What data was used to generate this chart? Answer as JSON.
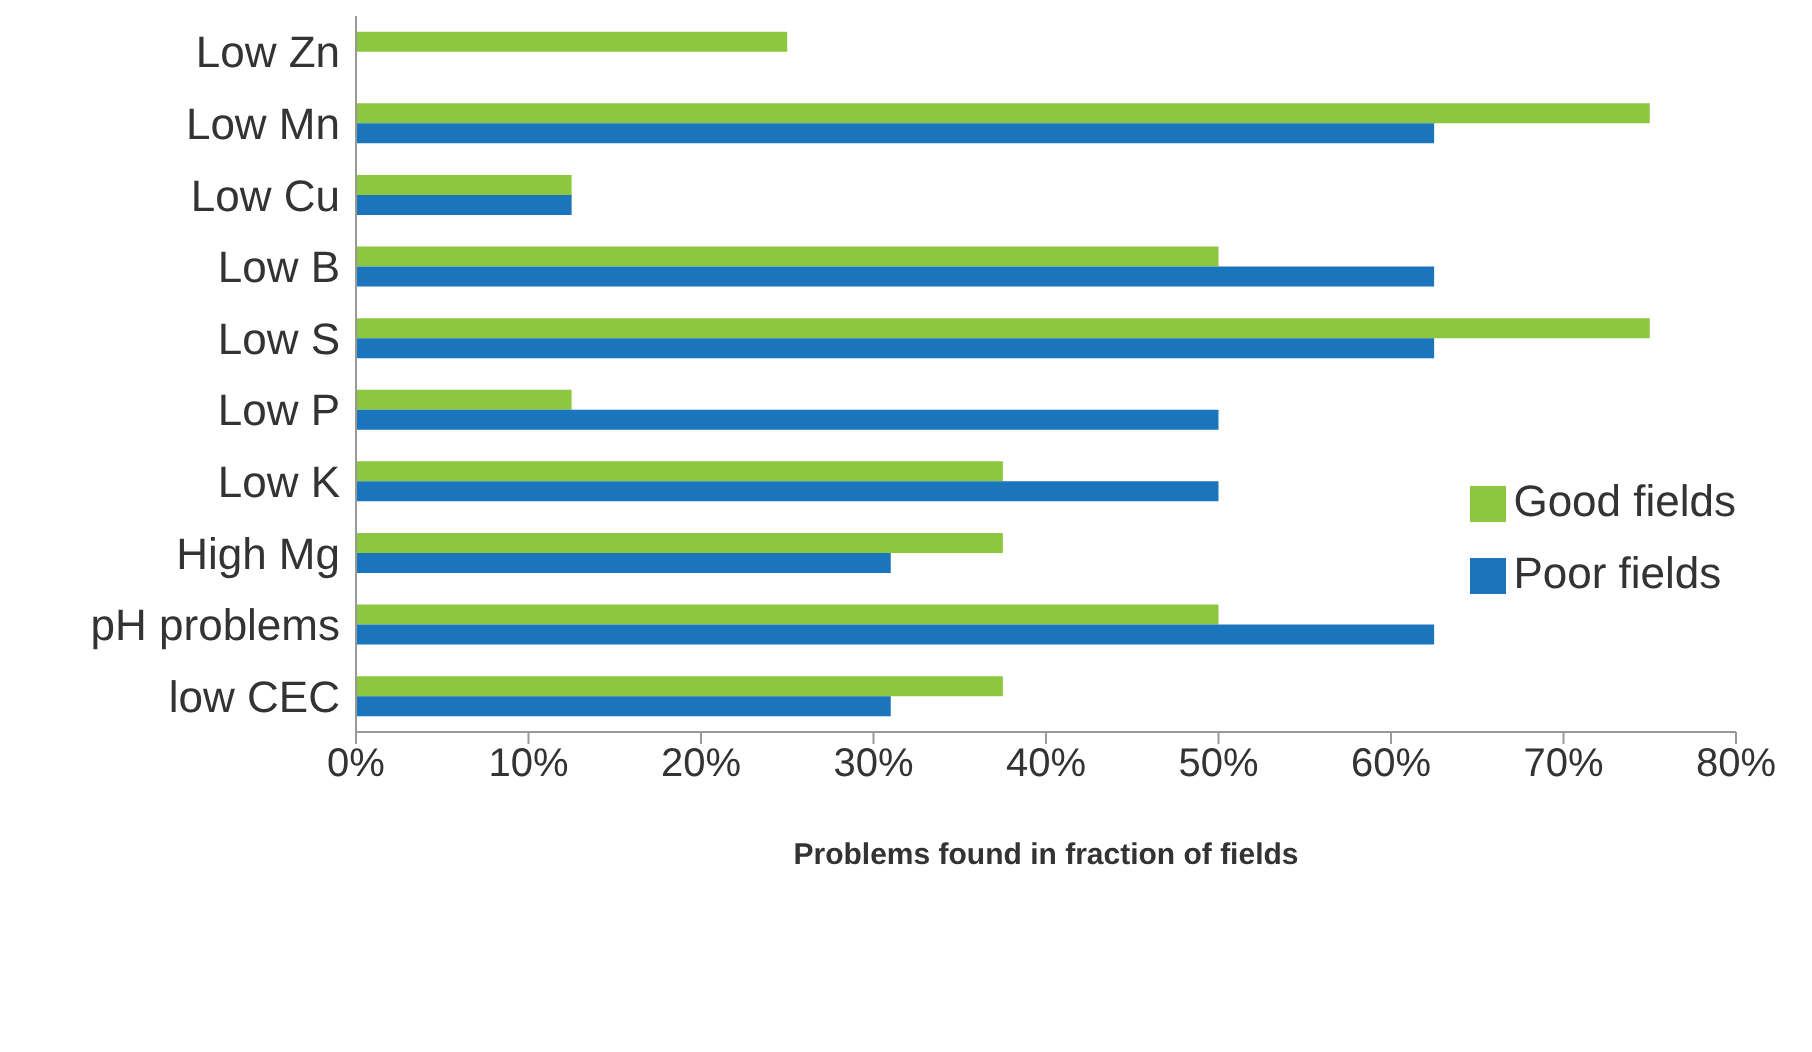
{
  "chart_data": {
    "type": "bar",
    "orientation": "horizontal",
    "xlabel": "Problems found in fraction of fields",
    "categories": [
      "Low Zn",
      "Low Mn",
      "Low Cu",
      "Low B",
      "Low S",
      "Low P",
      "Low K",
      "High Mg",
      "pH problems",
      "low CEC"
    ],
    "series": [
      {
        "name": "Good fields",
        "color": "#8dc63f",
        "values": [
          25,
          75,
          12.5,
          50,
          75,
          12.5,
          37.5,
          37.5,
          50,
          37.5
        ]
      },
      {
        "name": "Poor fields",
        "color": "#1b75bc",
        "values": [
          0,
          62.5,
          12.5,
          62.5,
          62.5,
          50,
          50,
          31,
          62.5,
          31
        ]
      }
    ],
    "xlim": [
      0,
      80
    ],
    "xticks": [
      {
        "value": 0,
        "label": "0%"
      },
      {
        "value": 10,
        "label": "10%"
      },
      {
        "value": 20,
        "label": "20%"
      },
      {
        "value": 30,
        "label": "30%"
      },
      {
        "value": 40,
        "label": "40%"
      },
      {
        "value": 50,
        "label": "50%"
      },
      {
        "value": 60,
        "label": "60%"
      },
      {
        "value": 70,
        "label": "70%"
      },
      {
        "value": 80,
        "label": "80%"
      }
    ],
    "legend": "right",
    "grid": false
  }
}
